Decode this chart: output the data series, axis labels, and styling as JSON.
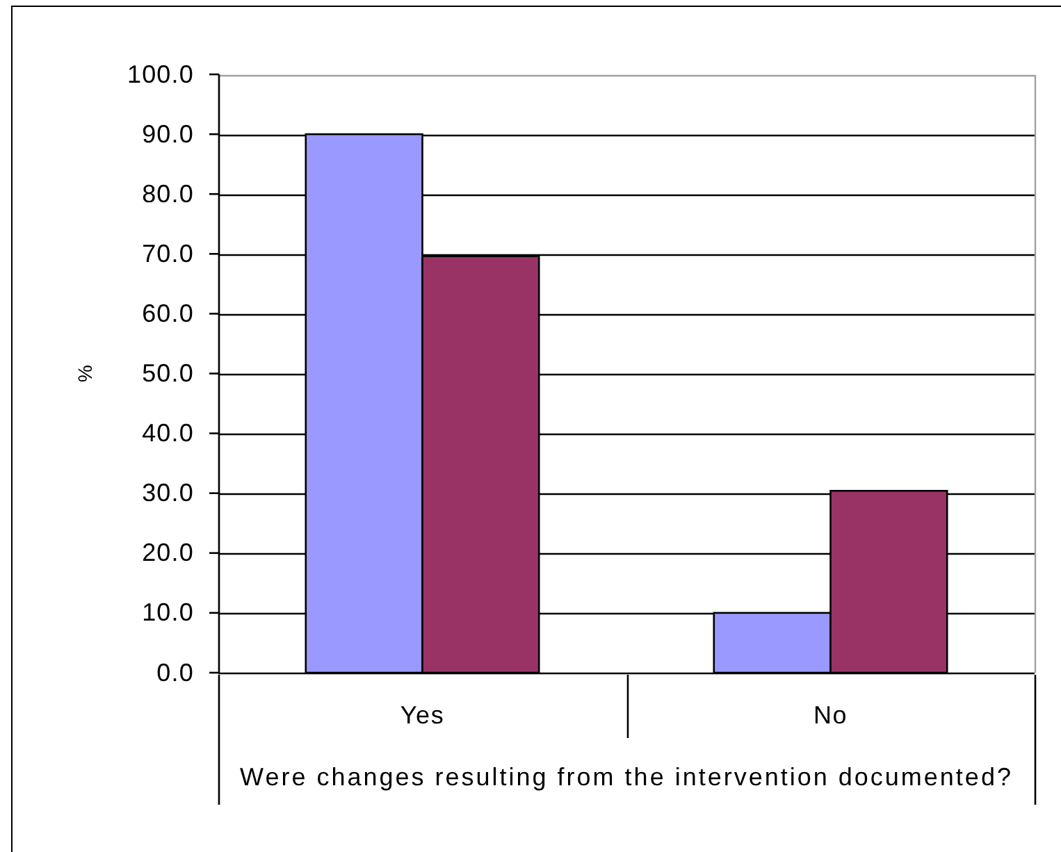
{
  "chart_data": {
    "type": "bar",
    "xlabel": "Were changes resulting from the intervention documented?",
    "ylabel": "%",
    "categories": [
      "Yes",
      "No"
    ],
    "series": [
      {
        "color": "#9999ff",
        "values": [
          90,
          10
        ]
      },
      {
        "color": "#993366",
        "values": [
          69.6,
          30.4
        ]
      }
    ],
    "ylim": [
      0,
      100
    ],
    "yticks": [
      {
        "value": 0,
        "label": "0.0"
      },
      {
        "value": 10,
        "label": "10.0"
      },
      {
        "value": 20,
        "label": "20.0"
      },
      {
        "value": 30,
        "label": "30.0"
      },
      {
        "value": 40,
        "label": "40.0"
      },
      {
        "value": 50,
        "label": "50.0"
      },
      {
        "value": 60,
        "label": "60.0"
      },
      {
        "value": 70,
        "label": "70.0"
      },
      {
        "value": 80,
        "label": "80.0"
      },
      {
        "value": 90,
        "label": "90.0"
      },
      {
        "value": 100,
        "label": "100.0"
      }
    ],
    "grid": "y"
  }
}
